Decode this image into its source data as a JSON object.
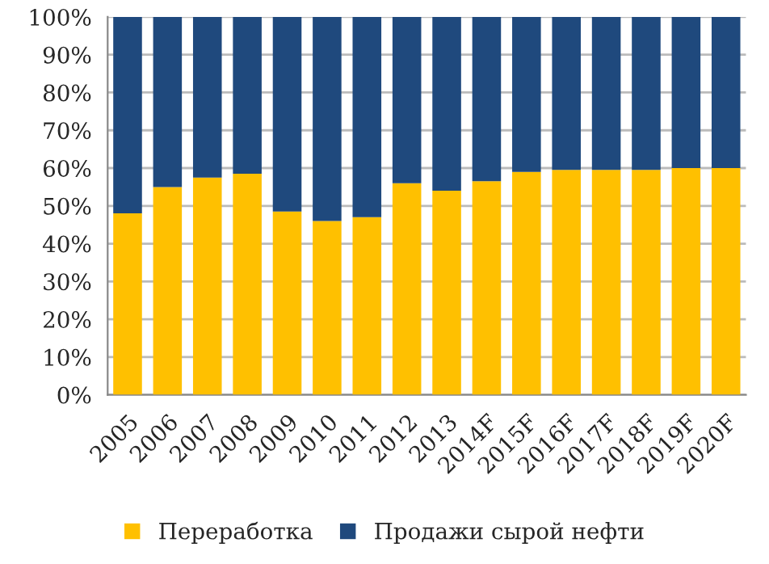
{
  "chart_data": {
    "type": "bar",
    "stacked": true,
    "categories": [
      "2005",
      "2006",
      "2007",
      "2008",
      "2009",
      "2010",
      "2011",
      "2012",
      "2013",
      "2014F",
      "2015F",
      "2016F",
      "2017F",
      "2018F",
      "2019F",
      "2020F"
    ],
    "series": [
      {
        "name": "Переработка",
        "color": "#ffc000",
        "values": [
          48,
          55,
          57.5,
          58.5,
          48.5,
          46,
          47,
          56,
          54,
          56.5,
          59,
          59.5,
          59.5,
          59.5,
          60,
          60
        ]
      },
      {
        "name": "Продажи сырой нефти",
        "color": "#1f497d",
        "values": [
          52,
          45,
          42.5,
          41.5,
          51.5,
          54,
          53,
          44,
          46,
          43.5,
          41,
          40.5,
          40.5,
          40.5,
          40,
          40
        ]
      }
    ],
    "ylim": [
      0,
      100
    ],
    "yticks": [
      {
        "value": 0,
        "label": "0%"
      },
      {
        "value": 10,
        "label": "10%"
      },
      {
        "value": 20,
        "label": "20%"
      },
      {
        "value": 30,
        "label": "30%"
      },
      {
        "value": 40,
        "label": "40%"
      },
      {
        "value": 50,
        "label": "50%"
      },
      {
        "value": 60,
        "label": "60%"
      },
      {
        "value": 70,
        "label": "70%"
      },
      {
        "value": 80,
        "label": "80%"
      },
      {
        "value": 90,
        "label": "90%"
      },
      {
        "value": 100,
        "label": "100%"
      }
    ],
    "grid": "y",
    "legend": "bottom"
  }
}
